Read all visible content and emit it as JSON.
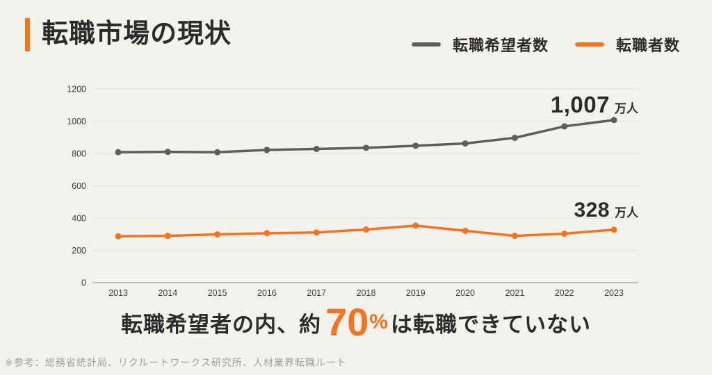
{
  "page": {
    "background": "#f4f2ee"
  },
  "header": {
    "title": "転職市場の現状",
    "accent_color": "#f7731d"
  },
  "legend": [
    {
      "label": "転職希望者数",
      "color": "#5f5c5c"
    },
    {
      "label": "転職者数",
      "color": "#f7731d"
    }
  ],
  "chart_data": {
    "type": "line",
    "x": [
      2013,
      2014,
      2015,
      2016,
      2017,
      2018,
      2019,
      2020,
      2021,
      2022,
      2023
    ],
    "series": [
      {
        "name": "転職希望者数",
        "color": "#5f5c5c",
        "values": [
          808,
          810,
          808,
          822,
          828,
          835,
          848,
          862,
          897,
          968,
          1007
        ]
      },
      {
        "name": "転職者数",
        "color": "#f7731d",
        "values": [
          287,
          290,
          299,
          306,
          311,
          329,
          353,
          321,
          290,
          303,
          328
        ]
      }
    ],
    "ylim": [
      0,
      1200
    ],
    "yticks": [
      0,
      200,
      400,
      600,
      800,
      1000,
      1200
    ],
    "grid": true,
    "legend_position": "top-right",
    "annotations": [
      {
        "series": "転職希望者数",
        "value_label": "1,007",
        "unit": "万人"
      },
      {
        "series": "転職者数",
        "value_label": "328",
        "unit": "万人"
      }
    ]
  },
  "callout": {
    "prefix": "転職希望者の内、約",
    "highlight": "70",
    "percent": "%",
    "suffix": "は転職できていない",
    "highlight_color": "#f7731d"
  },
  "footer": {
    "source": "※参考：総務省統計局、リクルートワークス研究所、人材業界転職ルート"
  }
}
